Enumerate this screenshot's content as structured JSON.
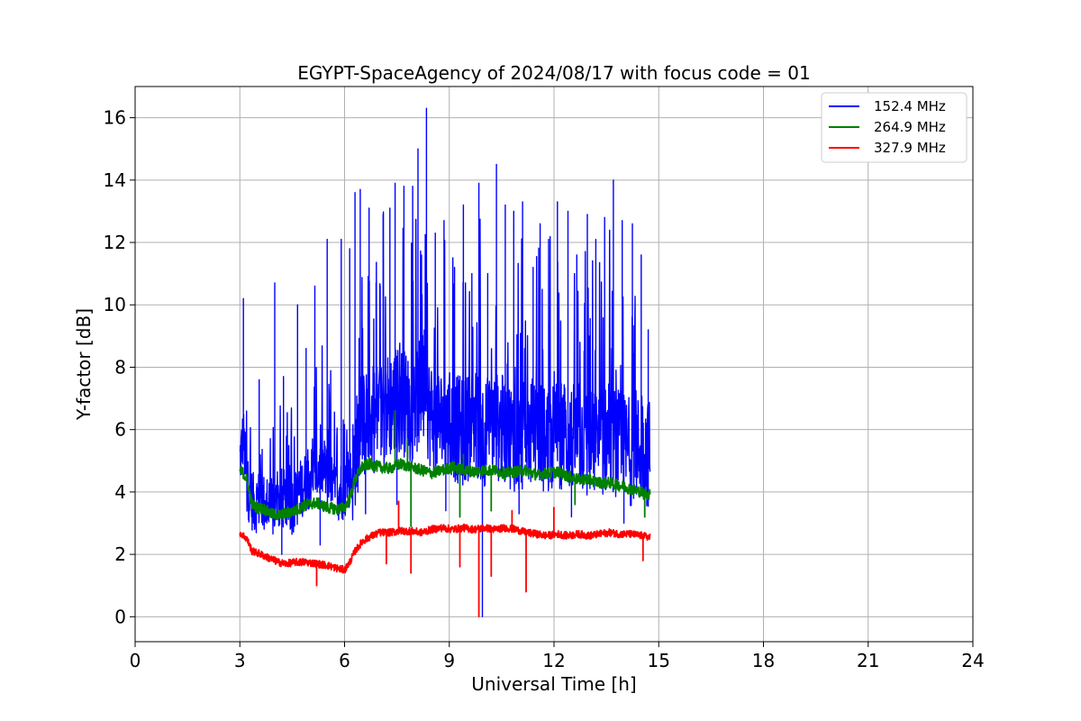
{
  "chart_data": {
    "type": "line",
    "title": "EGYPT-SpaceAgency of 2024/08/17 with focus code = 01",
    "xlabel": "Universal Time [h]",
    "ylabel": "Y-factor [dB]",
    "xlim": [
      0,
      24
    ],
    "ylim": [
      -0.8,
      17
    ],
    "xticks": [
      "0",
      "3",
      "6",
      "9",
      "12",
      "15",
      "18",
      "21",
      "24"
    ],
    "yticks": [
      "0",
      "2",
      "4",
      "6",
      "8",
      "10",
      "12",
      "14",
      "16"
    ],
    "grid": true,
    "legend_position": "top-right",
    "series": [
      {
        "name": "152.4 MHz",
        "color": "#0000ff",
        "x": [
          3.0,
          3.1,
          3.2,
          3.4,
          3.6,
          3.8,
          4.0,
          4.2,
          4.5,
          4.8,
          5.1,
          5.4,
          5.7,
          6.0,
          6.2,
          6.4,
          6.6,
          6.8,
          7.0,
          7.3,
          7.6,
          7.9,
          8.2,
          8.5,
          8.8,
          9.1,
          9.4,
          9.7,
          10.0,
          10.3,
          10.6,
          10.9,
          11.2,
          11.5,
          11.8,
          12.1,
          12.4,
          12.7,
          13.0,
          13.3,
          13.6,
          13.9,
          14.2,
          14.5,
          14.75
        ],
        "y": [
          5.0,
          5.8,
          4.2,
          3.6,
          3.8,
          3.4,
          3.5,
          3.8,
          3.6,
          4.2,
          4.6,
          4.8,
          4.0,
          4.1,
          4.5,
          5.8,
          6.2,
          6.3,
          6.5,
          6.8,
          7.0,
          6.6,
          7.2,
          6.4,
          6.2,
          6.1,
          5.9,
          6.3,
          5.9,
          6.1,
          6.0,
          5.7,
          5.8,
          6.0,
          5.6,
          5.9,
          5.7,
          5.8,
          5.5,
          5.6,
          5.7,
          5.5,
          5.3,
          5.4,
          5.2
        ],
        "peaks": [
          [
            3.1,
            10.2
          ],
          [
            3.55,
            7.6
          ],
          [
            4.0,
            10.7
          ],
          [
            4.25,
            7.7
          ],
          [
            4.65,
            10.0
          ],
          [
            4.9,
            8.6
          ],
          [
            5.15,
            10.6
          ],
          [
            5.5,
            12.1
          ],
          [
            5.9,
            12.1
          ],
          [
            6.15,
            11.8
          ],
          [
            6.3,
            13.6
          ],
          [
            6.45,
            13.7
          ],
          [
            6.7,
            13.1
          ],
          [
            6.9,
            10.7
          ],
          [
            7.1,
            12.9
          ],
          [
            7.3,
            13.1
          ],
          [
            7.45,
            13.9
          ],
          [
            7.7,
            13.8
          ],
          [
            7.95,
            13.8
          ],
          [
            8.1,
            15.0
          ],
          [
            8.35,
            16.3
          ],
          [
            8.6,
            12.3
          ],
          [
            8.85,
            12.7
          ],
          [
            9.15,
            11.2
          ],
          [
            9.4,
            13.2
          ],
          [
            9.65,
            11.0
          ],
          [
            9.85,
            13.9
          ],
          [
            10.1,
            11.0
          ],
          [
            10.35,
            14.5
          ],
          [
            10.6,
            13.2
          ],
          [
            10.85,
            13.0
          ],
          [
            11.1,
            13.3
          ],
          [
            11.4,
            11.2
          ],
          [
            11.6,
            12.6
          ],
          [
            11.85,
            12.1
          ],
          [
            12.1,
            13.3
          ],
          [
            12.4,
            13.0
          ],
          [
            12.65,
            11.6
          ],
          [
            12.95,
            12.9
          ],
          [
            13.2,
            12.1
          ],
          [
            13.45,
            12.8
          ],
          [
            13.7,
            14.0
          ],
          [
            13.95,
            12.7
          ],
          [
            14.25,
            12.6
          ],
          [
            14.5,
            11.6
          ],
          [
            14.7,
            9.2
          ]
        ],
        "dips": [
          [
            4.2,
            2.0
          ],
          [
            5.3,
            2.3
          ],
          [
            6.6,
            3.3
          ],
          [
            7.5,
            3.6
          ],
          [
            8.9,
            3.4
          ],
          [
            9.95,
            0.0
          ],
          [
            11.0,
            3.3
          ],
          [
            12.5,
            3.2
          ],
          [
            14.0,
            3.0
          ]
        ]
      },
      {
        "name": "264.9 MHz",
        "color": "#008000",
        "x": [
          3.0,
          3.1,
          3.2,
          3.35,
          3.5,
          3.7,
          3.9,
          4.1,
          4.3,
          4.6,
          4.9,
          5.2,
          5.5,
          5.8,
          6.0,
          6.15,
          6.3,
          6.5,
          6.7,
          7.0,
          7.3,
          7.6,
          7.9,
          8.2,
          8.5,
          8.8,
          9.1,
          9.4,
          9.7,
          10.0,
          10.3,
          10.6,
          10.9,
          11.2,
          11.5,
          11.8,
          12.1,
          12.4,
          12.7,
          13.0,
          13.3,
          13.6,
          13.9,
          14.2,
          14.5,
          14.75
        ],
        "y": [
          4.7,
          4.6,
          4.4,
          3.6,
          3.5,
          3.45,
          3.3,
          3.25,
          3.3,
          3.4,
          3.6,
          3.65,
          3.5,
          3.45,
          3.5,
          3.8,
          4.4,
          4.8,
          4.9,
          4.8,
          4.75,
          4.9,
          4.8,
          4.7,
          4.6,
          4.7,
          4.8,
          4.7,
          4.65,
          4.7,
          4.7,
          4.6,
          4.65,
          4.7,
          4.55,
          4.6,
          4.65,
          4.5,
          4.4,
          4.4,
          4.3,
          4.3,
          4.2,
          4.1,
          4.0,
          3.9
        ],
        "peaks": [
          [
            7.45,
            6.6
          ],
          [
            7.8,
            5.7
          ],
          [
            9.4,
            5.2
          ]
        ],
        "dips": [
          [
            7.9,
            2.9
          ],
          [
            9.3,
            3.2
          ],
          [
            10.2,
            3.4
          ],
          [
            12.6,
            3.6
          ],
          [
            14.6,
            3.2
          ]
        ]
      },
      {
        "name": "327.9 MHz",
        "color": "#ff0000",
        "x": [
          3.0,
          3.1,
          3.2,
          3.35,
          3.5,
          3.7,
          3.9,
          4.1,
          4.3,
          4.6,
          4.9,
          5.2,
          5.5,
          5.8,
          6.0,
          6.15,
          6.3,
          6.5,
          6.7,
          7.0,
          7.3,
          7.6,
          7.9,
          8.2,
          8.5,
          8.8,
          9.1,
          9.4,
          9.7,
          10.0,
          10.3,
          10.6,
          10.9,
          11.2,
          11.5,
          11.8,
          12.1,
          12.4,
          12.7,
          13.0,
          13.3,
          13.6,
          13.9,
          14.2,
          14.5,
          14.75
        ],
        "y": [
          2.7,
          2.6,
          2.5,
          2.1,
          2.05,
          1.95,
          1.85,
          1.75,
          1.7,
          1.75,
          1.75,
          1.7,
          1.65,
          1.55,
          1.5,
          1.75,
          2.1,
          2.4,
          2.55,
          2.7,
          2.7,
          2.75,
          2.75,
          2.7,
          2.8,
          2.85,
          2.8,
          2.85,
          2.8,
          2.85,
          2.8,
          2.85,
          2.8,
          2.7,
          2.65,
          2.6,
          2.65,
          2.6,
          2.65,
          2.6,
          2.65,
          2.7,
          2.65,
          2.65,
          2.6,
          2.55
        ],
        "peaks": [
          [
            7.55,
            3.7
          ],
          [
            10.8,
            3.4
          ],
          [
            12.0,
            3.5
          ]
        ],
        "dips": [
          [
            5.2,
            1.0
          ],
          [
            7.2,
            1.7
          ],
          [
            7.9,
            1.4
          ],
          [
            9.3,
            1.6
          ],
          [
            9.85,
            0.0
          ],
          [
            10.2,
            1.3
          ],
          [
            11.2,
            0.8
          ],
          [
            14.55,
            1.8
          ]
        ]
      }
    ]
  }
}
